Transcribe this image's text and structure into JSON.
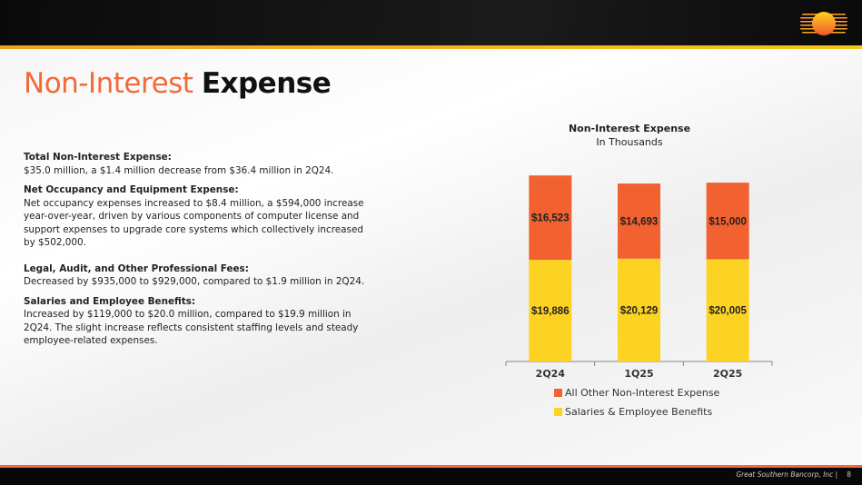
{
  "header": {
    "title_part1": "Non-Interest",
    "title_part2": "Expense"
  },
  "sections": [
    {
      "heading": "Total Non-Interest Expense:",
      "body": "$35.0 million, a $1.4 million decrease from $36.4 million in 2Q24."
    },
    {
      "heading": "Net Occupancy and Equipment Expense:",
      "body": "Net occupancy expenses increased to $8.4 million, a $594,000 increase year-over-year, driven by various components of computer license and support expenses to upgrade core systems which collectively increased by $502,000."
    },
    {
      "heading": "Legal, Audit, and Other Professional Fees:",
      "body": "Decreased by $935,000 to $929,000, compared to $1.9 million in 2Q24."
    },
    {
      "heading": "Salaries and Employee Benefits:",
      "body": "Increased by $119,000 to $20.0 million, compared to $19.9 million in 2Q24. The slight increase reflects consistent staffing levels and steady employee-related expenses."
    }
  ],
  "chart_data": {
    "type": "bar",
    "stacked": true,
    "title": "Non-Interest Expense",
    "subtitle": "In Thousands",
    "categories": [
      "2Q24",
      "1Q25",
      "2Q25"
    ],
    "series": [
      {
        "name": "Salaries & Employee Benefits",
        "values": [
          19886,
          20129,
          20005
        ],
        "labels": [
          "$19,886",
          "$20,129",
          "$20,005"
        ],
        "color": "#fdd323"
      },
      {
        "name": "All Other Non-Interest Expense",
        "values": [
          16523,
          14693,
          15000
        ],
        "labels": [
          "$16,523",
          "$14,693",
          "$15,000"
        ],
        "color": "#f26130"
      }
    ],
    "ylim": [
      0,
      40000
    ],
    "legend_position": "bottom"
  },
  "footer": {
    "company": "Great Southern Bancorp, Inc  |",
    "page": "8"
  }
}
